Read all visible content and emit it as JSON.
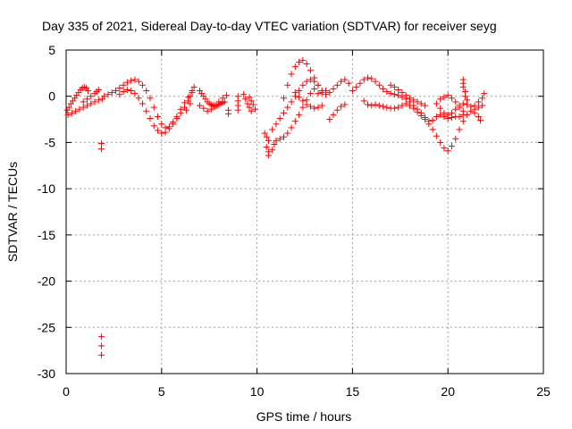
{
  "chart_data": {
    "type": "scatter",
    "title": "Day 335 of 2021, Sidereal Day-to-day VTEC variation (SDTVAR) for receiver seyg",
    "xlabel": "GPS time / hours",
    "ylabel": "SDTVAR / TECUs",
    "xlim": [
      0,
      25
    ],
    "ylim": [
      -30,
      5
    ],
    "xticks": [
      "0",
      "5",
      "10",
      "15",
      "20",
      "25"
    ],
    "yticks": [
      "5",
      "0",
      "-5",
      "-10",
      "-15",
      "-20",
      "-25",
      "-30"
    ],
    "grid": true,
    "marker": "+",
    "color": "#ff0000",
    "series": [
      {
        "name": "s1",
        "points": [
          [
            0.05,
            -1.5
          ],
          [
            0.15,
            -1.2
          ],
          [
            0.25,
            -0.8
          ],
          [
            0.35,
            -0.5
          ],
          [
            0.45,
            -0.2
          ],
          [
            0.55,
            0.1
          ],
          [
            0.65,
            0.4
          ],
          [
            0.75,
            0.7
          ],
          [
            0.85,
            0.9
          ],
          [
            0.95,
            1.0
          ],
          [
            1.05,
            0.9
          ],
          [
            1.15,
            0.6
          ]
        ]
      },
      {
        "name": "s2",
        "points": [
          [
            0.1,
            -2.0
          ],
          [
            0.3,
            -1.8
          ],
          [
            0.5,
            -1.6
          ],
          [
            0.7,
            -1.4
          ],
          [
            0.9,
            -1.2
          ],
          [
            1.1,
            -1.0
          ],
          [
            1.3,
            -0.8
          ],
          [
            1.5,
            -0.6
          ],
          [
            1.7,
            -0.4
          ],
          [
            1.9,
            -0.3
          ]
        ]
      },
      {
        "name": "s3",
        "points": [
          [
            0.9,
            -0.6
          ],
          [
            1.1,
            -0.3
          ],
          [
            1.3,
            0.0
          ],
          [
            1.5,
            0.3
          ],
          [
            1.6,
            0.5
          ],
          [
            1.7,
            0.7
          ]
        ]
      },
      {
        "name": "s4",
        "points": [
          [
            1.85,
            -5.1
          ],
          [
            1.85,
            -5.7
          ],
          [
            1.85,
            -26.0
          ],
          [
            1.85,
            -27.0
          ],
          [
            1.85,
            -28.0
          ]
        ]
      },
      {
        "name": "s5",
        "points": [
          [
            2.0,
            0.0
          ],
          [
            2.2,
            0.2
          ],
          [
            2.4,
            0.4
          ],
          [
            2.6,
            0.6
          ],
          [
            2.8,
            0.9
          ],
          [
            3.0,
            1.2
          ],
          [
            3.2,
            1.5
          ],
          [
            3.4,
            1.7
          ],
          [
            3.6,
            1.8
          ],
          [
            3.8,
            1.6
          ],
          [
            4.0,
            1.2
          ],
          [
            4.2,
            0.6
          ],
          [
            4.4,
            -0.2
          ],
          [
            4.6,
            -1.2
          ],
          [
            4.8,
            -2.2
          ],
          [
            5.0,
            -3.0
          ],
          [
            5.2,
            -3.4
          ],
          [
            5.4,
            -3.3
          ],
          [
            5.6,
            -2.8
          ],
          [
            5.8,
            -2.2
          ],
          [
            6.0,
            -1.4
          ],
          [
            6.2,
            -0.7
          ],
          [
            6.4,
            -0.1
          ],
          [
            6.6,
            0.4
          ]
        ]
      },
      {
        "name": "s6",
        "points": [
          [
            2.8,
            0.2
          ],
          [
            3.0,
            0.5
          ],
          [
            3.2,
            0.7
          ],
          [
            3.4,
            0.6
          ],
          [
            3.6,
            0.3
          ],
          [
            3.8,
            -0.2
          ],
          [
            4.0,
            -0.8
          ],
          [
            4.2,
            -1.6
          ],
          [
            4.4,
            -2.4
          ],
          [
            4.6,
            -3.2
          ],
          [
            4.8,
            -3.7
          ],
          [
            5.0,
            -4.0
          ],
          [
            5.2,
            -3.9
          ],
          [
            5.4,
            -3.5
          ],
          [
            5.6,
            -3.0
          ],
          [
            5.8,
            -2.4
          ]
        ]
      },
      {
        "name": "s7",
        "points": [
          [
            6.0,
            -1.8
          ],
          [
            6.2,
            -1.2
          ],
          [
            6.4,
            -0.5
          ],
          [
            6.5,
            0.0
          ],
          [
            6.6,
            0.6
          ],
          [
            6.7,
            1.0
          ],
          [
            6.5,
            -0.8
          ],
          [
            6.3,
            -1.5
          ]
        ]
      },
      {
        "name": "s8",
        "points": [
          [
            7.0,
            0.6
          ],
          [
            7.1,
            0.3
          ],
          [
            7.2,
            0.0
          ],
          [
            7.3,
            -0.3
          ],
          [
            7.4,
            -0.6
          ],
          [
            7.5,
            -0.8
          ],
          [
            7.6,
            -0.9
          ],
          [
            7.7,
            -1.0
          ],
          [
            7.8,
            -1.1
          ],
          [
            7.9,
            -1.0
          ],
          [
            8.0,
            -0.9
          ],
          [
            8.1,
            -0.8
          ],
          [
            8.2,
            -0.7
          ],
          [
            8.3,
            -0.6
          ]
        ]
      },
      {
        "name": "s9",
        "points": [
          [
            7.0,
            -1.0
          ],
          [
            7.2,
            -1.3
          ],
          [
            7.4,
            -1.6
          ],
          [
            7.6,
            -1.4
          ],
          [
            7.8,
            -1.0
          ],
          [
            8.0,
            -0.6
          ],
          [
            8.2,
            -0.2
          ],
          [
            8.4,
            0.1
          ],
          [
            8.5,
            -1.5
          ],
          [
            8.5,
            -1.9
          ]
        ]
      },
      {
        "name": "s10",
        "points": [
          [
            9.0,
            0.0
          ],
          [
            9.0,
            -0.5
          ],
          [
            9.0,
            -1.0
          ],
          [
            9.0,
            -1.5
          ],
          [
            9.3,
            0.2
          ],
          [
            9.4,
            -0.3
          ],
          [
            9.5,
            -0.8
          ],
          [
            9.6,
            -1.2
          ],
          [
            9.7,
            -1.6
          ],
          [
            9.6,
            -0.1
          ],
          [
            9.7,
            -0.5
          ],
          [
            9.8,
            -0.9
          ],
          [
            9.9,
            -1.4
          ]
        ]
      },
      {
        "name": "s11",
        "points": [
          [
            10.4,
            -4.0
          ],
          [
            10.5,
            -4.4
          ],
          [
            10.6,
            -4.8
          ],
          [
            10.5,
            -5.5
          ],
          [
            10.6,
            -6.0
          ],
          [
            10.6,
            -6.4
          ],
          [
            10.8,
            -5.8
          ],
          [
            10.9,
            -5.2
          ],
          [
            11.0,
            -4.8
          ],
          [
            11.2,
            -4.6
          ],
          [
            11.4,
            -4.4
          ],
          [
            11.6,
            -4.0
          ],
          [
            11.8,
            -3.4
          ],
          [
            12.0,
            -2.7
          ],
          [
            12.2,
            -2.0
          ],
          [
            12.4,
            -1.2
          ],
          [
            12.6,
            -0.4
          ],
          [
            12.8,
            0.3
          ],
          [
            13.0,
            0.8
          ]
        ]
      },
      {
        "name": "s12",
        "points": [
          [
            10.8,
            -3.6
          ],
          [
            11.0,
            -3.0
          ],
          [
            11.2,
            -2.4
          ],
          [
            11.4,
            -1.8
          ],
          [
            11.6,
            -1.2
          ],
          [
            11.8,
            -0.6
          ],
          [
            12.0,
            0.0
          ],
          [
            12.2,
            0.6
          ],
          [
            12.4,
            1.2
          ],
          [
            12.6,
            1.6
          ],
          [
            12.8,
            1.8
          ],
          [
            13.0,
            1.6
          ],
          [
            13.2,
            1.2
          ]
        ]
      },
      {
        "name": "s13",
        "points": [
          [
            11.4,
            -0.2
          ],
          [
            11.6,
            1.2
          ],
          [
            11.8,
            2.4
          ],
          [
            12.0,
            3.2
          ],
          [
            12.2,
            3.7
          ],
          [
            12.4,
            3.9
          ],
          [
            12.6,
            3.5
          ],
          [
            12.8,
            2.8
          ],
          [
            13.0,
            2.0
          ],
          [
            13.2,
            1.2
          ],
          [
            13.4,
            0.6
          ],
          [
            13.6,
            0.2
          ],
          [
            13.8,
            0.4
          ],
          [
            14.0,
            0.8
          ],
          [
            14.2,
            1.2
          ],
          [
            14.4,
            1.6
          ],
          [
            14.6,
            1.8
          ],
          [
            14.8,
            1.4
          ]
        ]
      },
      {
        "name": "s14",
        "points": [
          [
            12.0,
            0.4
          ],
          [
            12.2,
            -0.1
          ],
          [
            12.4,
            -0.5
          ],
          [
            12.6,
            -0.9
          ],
          [
            12.8,
            -1.1
          ],
          [
            13.0,
            -1.3
          ],
          [
            13.2,
            -1.2
          ],
          [
            13.4,
            -1.0
          ]
        ]
      },
      {
        "name": "s15",
        "points": [
          [
            13.2,
            0.3
          ],
          [
            13.4,
            0.4
          ],
          [
            13.6,
            0.6
          ],
          [
            13.8,
            -2.5
          ],
          [
            14.0,
            -2.0
          ],
          [
            14.2,
            -1.5
          ],
          [
            14.4,
            -1.1
          ],
          [
            14.6,
            -0.9
          ]
        ]
      },
      {
        "name": "s16",
        "points": [
          [
            15.0,
            0.6
          ],
          [
            15.2,
            1.0
          ],
          [
            15.4,
            1.4
          ],
          [
            15.6,
            1.8
          ],
          [
            15.8,
            2.0
          ],
          [
            16.0,
            1.9
          ],
          [
            16.2,
            1.6
          ],
          [
            16.4,
            1.2
          ],
          [
            16.6,
            0.8
          ],
          [
            16.8,
            0.5
          ],
          [
            17.0,
            0.3
          ],
          [
            17.2,
            0.2
          ],
          [
            17.4,
            0.1
          ],
          [
            17.6,
            -0.1
          ],
          [
            17.8,
            -0.3
          ],
          [
            18.0,
            -0.6
          ],
          [
            18.2,
            -1.0
          ],
          [
            18.4,
            -1.4
          ],
          [
            18.6,
            -1.8
          ],
          [
            18.8,
            -2.3
          ],
          [
            19.0,
            -2.7
          ],
          [
            19.2,
            -2.6
          ],
          [
            19.4,
            -2.2
          ],
          [
            19.6,
            -2.0
          ],
          [
            19.8,
            -2.2
          ],
          [
            20.0,
            -2.4
          ],
          [
            20.2,
            -2.3
          ],
          [
            20.4,
            -2.2
          ],
          [
            20.6,
            -2.2
          ],
          [
            20.8,
            -2.0
          ]
        ]
      },
      {
        "name": "s17",
        "points": [
          [
            15.6,
            -0.5
          ],
          [
            15.8,
            -0.9
          ],
          [
            16.0,
            -1.0
          ],
          [
            16.2,
            -0.9
          ],
          [
            16.4,
            -1.0
          ],
          [
            16.6,
            -1.1
          ],
          [
            16.8,
            -1.2
          ],
          [
            17.0,
            -1.3
          ],
          [
            17.2,
            -1.3
          ],
          [
            17.4,
            -1.2
          ],
          [
            17.6,
            -1.0
          ],
          [
            17.8,
            -0.8
          ],
          [
            18.0,
            -1.0
          ],
          [
            18.2,
            -1.3
          ],
          [
            18.4,
            -1.7
          ],
          [
            18.6,
            -2.1
          ],
          [
            18.8,
            -2.5
          ],
          [
            19.0,
            -3.0
          ],
          [
            19.2,
            -3.6
          ],
          [
            19.4,
            -4.3
          ],
          [
            19.6,
            -5.0
          ],
          [
            19.8,
            -5.6
          ],
          [
            20.0,
            -5.9
          ],
          [
            20.2,
            -5.4
          ],
          [
            20.4,
            -4.6
          ],
          [
            20.6,
            -3.6
          ],
          [
            20.8,
            -2.7
          ],
          [
            21.0,
            -2.0
          ],
          [
            21.2,
            -1.6
          ],
          [
            21.4,
            -1.4
          ],
          [
            21.6,
            -1.2
          ],
          [
            21.8,
            -1.0
          ]
        ]
      },
      {
        "name": "s18",
        "points": [
          [
            17.0,
            1.2
          ],
          [
            17.2,
            1.0
          ],
          [
            17.4,
            0.7
          ],
          [
            17.6,
            0.4
          ],
          [
            17.8,
            0.1
          ],
          [
            18.0,
            -0.2
          ],
          [
            18.2,
            -0.4
          ],
          [
            18.4,
            -0.6
          ],
          [
            18.6,
            -0.8
          ],
          [
            18.8,
            -1.0
          ]
        ]
      },
      {
        "name": "s19",
        "points": [
          [
            19.4,
            -0.8
          ],
          [
            19.6,
            -1.3
          ],
          [
            19.8,
            -1.8
          ],
          [
            20.0,
            -2.0
          ],
          [
            20.2,
            -1.8
          ],
          [
            20.4,
            -1.4
          ],
          [
            20.6,
            -1.0
          ],
          [
            20.8,
            -0.8
          ],
          [
            21.0,
            -0.9
          ],
          [
            21.2,
            -1.1
          ],
          [
            21.4,
            -1.0
          ],
          [
            21.6,
            -0.6
          ],
          [
            21.8,
            -0.2
          ],
          [
            21.9,
            0.3
          ]
        ]
      },
      {
        "name": "s20",
        "points": [
          [
            20.8,
            1.8
          ],
          [
            20.8,
            1.4
          ],
          [
            20.8,
            1.0
          ],
          [
            20.9,
            0.5
          ],
          [
            20.9,
            0.0
          ],
          [
            21.0,
            -0.4
          ],
          [
            21.4,
            -1.8
          ],
          [
            21.6,
            -2.2
          ],
          [
            21.7,
            -2.6
          ]
        ]
      },
      {
        "name": "s21",
        "points": [
          [
            19.6,
            -0.3
          ],
          [
            19.8,
            -0.1
          ],
          [
            20.0,
            0.1
          ],
          [
            20.2,
            -0.2
          ],
          [
            20.4,
            -0.6
          ],
          [
            20.6,
            -1.2
          ],
          [
            20.8,
            -1.6
          ]
        ]
      }
    ]
  }
}
